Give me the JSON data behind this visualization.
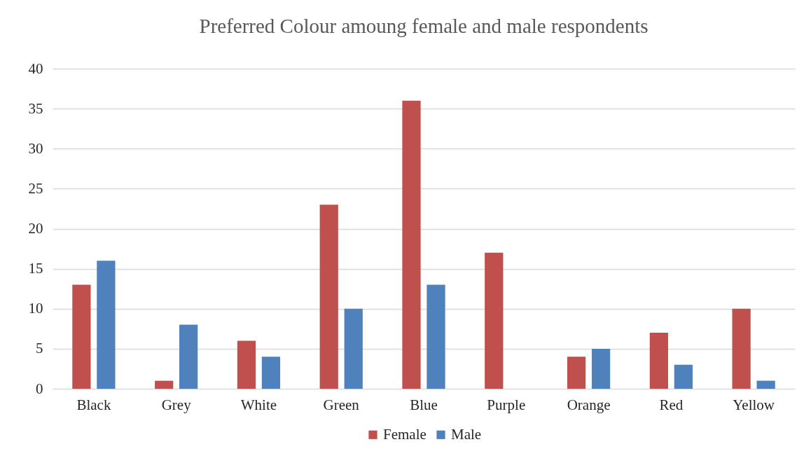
{
  "chart_data": {
    "type": "bar",
    "title": "Preferred Colour amoung female and male respondents",
    "categories": [
      "Black",
      "Grey",
      "White",
      "Green",
      "Blue",
      "Purple",
      "Orange",
      "Red",
      "Yellow"
    ],
    "series": [
      {
        "name": "Female",
        "color": "#c0504d",
        "values": [
          13,
          1,
          6,
          23,
          36,
          17,
          4,
          7,
          10
        ]
      },
      {
        "name": "Male",
        "color": "#4f81bd",
        "values": [
          16,
          8,
          4,
          10,
          13,
          0,
          5,
          3,
          1
        ]
      }
    ],
    "ylim": [
      0,
      40
    ],
    "yticks": [
      0,
      5,
      10,
      15,
      20,
      25,
      30,
      35,
      40
    ],
    "grid": "y",
    "legend": "bottom"
  }
}
